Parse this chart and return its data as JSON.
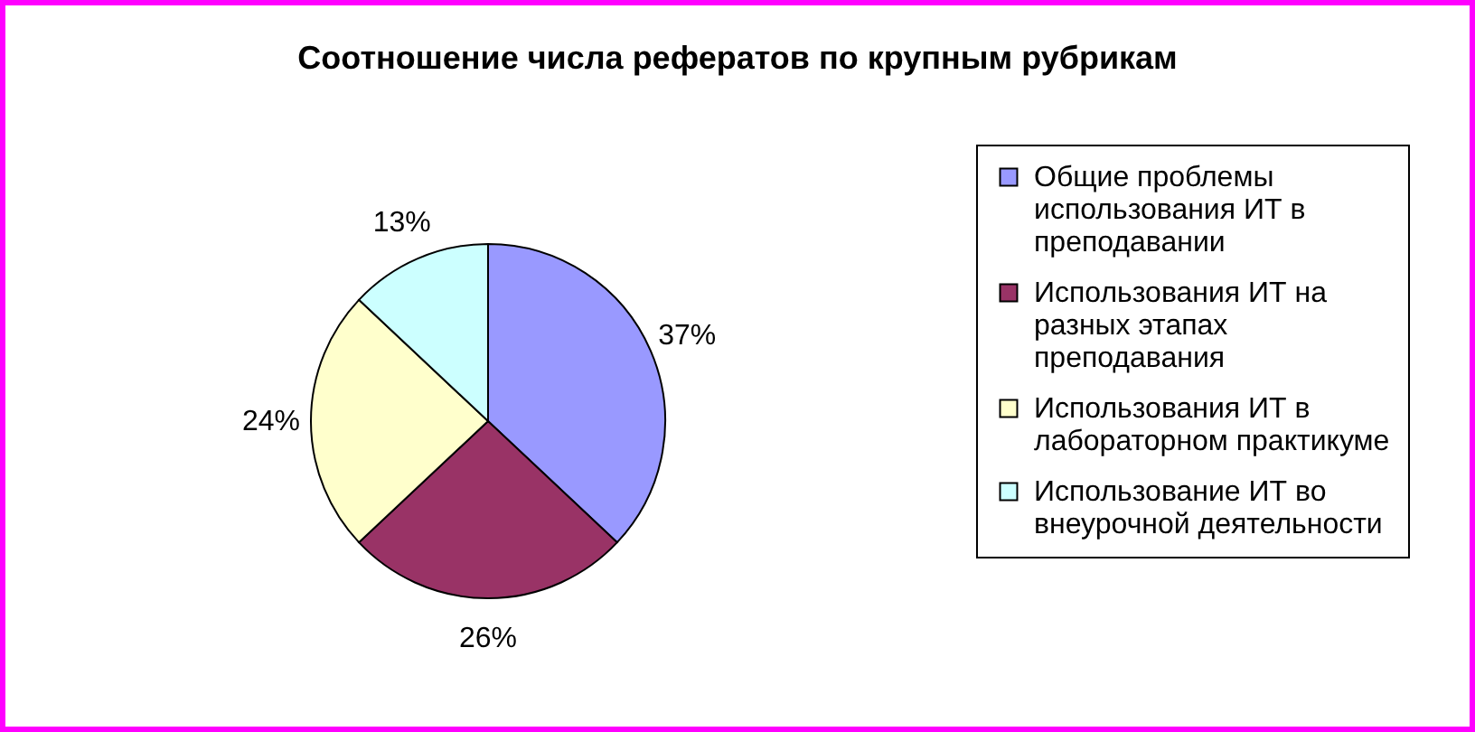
{
  "chart_data": {
    "type": "pie",
    "title": "Соотношение числа рефератов по крупным рубрикам",
    "categories": [
      "Общие проблемы использования ИТ в преподавании",
      "Использования ИТ на разных этапах преподавания",
      "Использования ИТ в лабораторном практикуме",
      "Использование ИТ во внеурочной деятельности"
    ],
    "values": [
      37,
      26,
      24,
      13
    ],
    "value_labels": [
      "37%",
      "26%",
      "24%",
      "13%"
    ],
    "colors": [
      "#9999ff",
      "#993366",
      "#ffffcc",
      "#ccffff"
    ],
    "legend": "right"
  }
}
